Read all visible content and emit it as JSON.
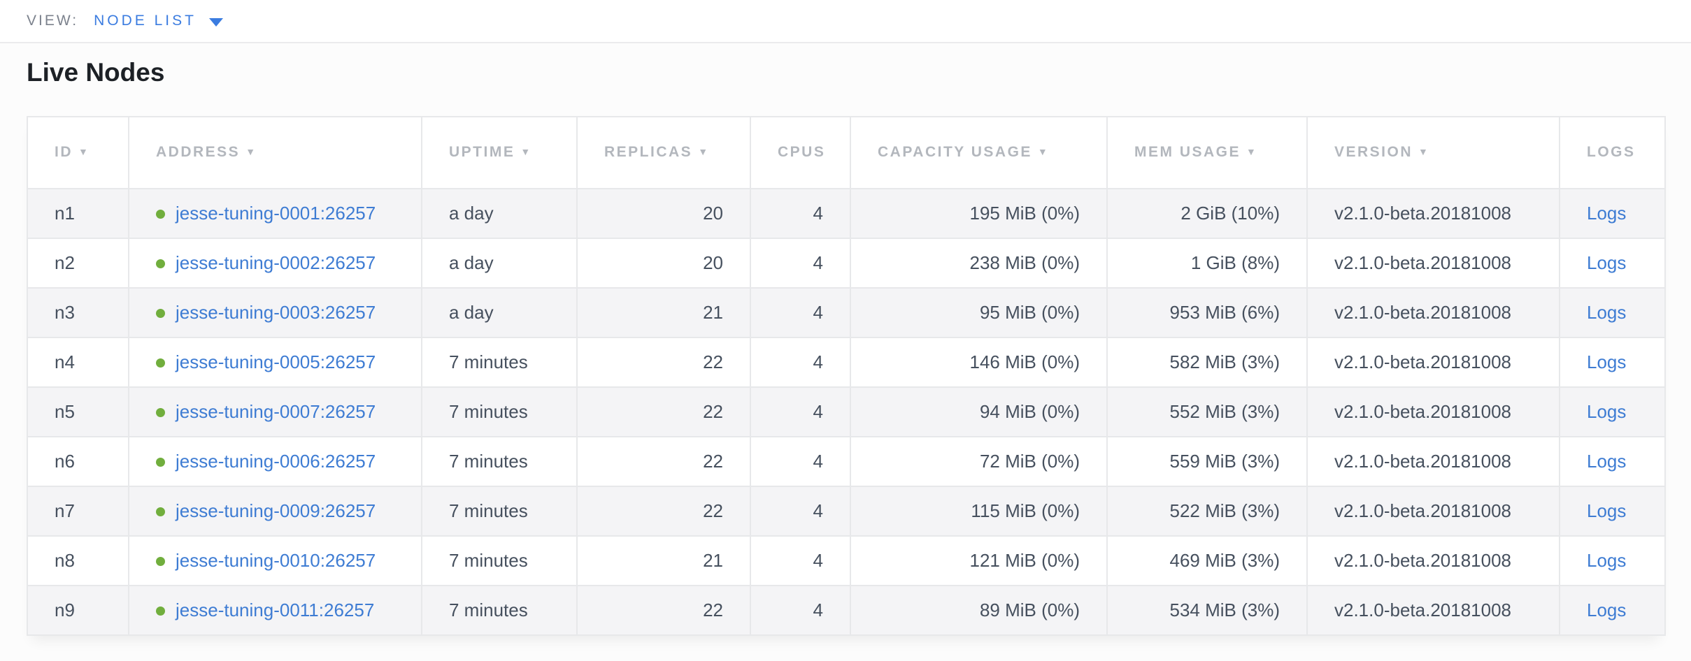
{
  "view_bar": {
    "label": "VIEW:",
    "selected_view": "NODE LIST"
  },
  "page_title": "Live Nodes",
  "colors": {
    "accent_blue": "#3b7ce0",
    "link_blue": "#3e7cd3",
    "status_green": "#71ae3d",
    "header_gray": "#b3b7bd",
    "cell_text": "#46505e",
    "row_stripe": "#f4f4f6",
    "border": "#e7e8ea"
  },
  "table": {
    "sort_arrow_glyph": "▼",
    "columns": [
      {
        "key": "id",
        "label": "ID",
        "sortable": true
      },
      {
        "key": "address",
        "label": "ADDRESS",
        "sortable": true
      },
      {
        "key": "uptime",
        "label": "UPTIME",
        "sortable": true
      },
      {
        "key": "replicas",
        "label": "REPLICAS",
        "sortable": true
      },
      {
        "key": "cpus",
        "label": "CPUS",
        "sortable": false
      },
      {
        "key": "capacity",
        "label": "CAPACITY USAGE",
        "sortable": true
      },
      {
        "key": "mem",
        "label": "MEM USAGE",
        "sortable": true
      },
      {
        "key": "version",
        "label": "VERSION",
        "sortable": true
      },
      {
        "key": "logs",
        "label": "LOGS",
        "sortable": false
      }
    ],
    "rows": [
      {
        "id": "n1",
        "status": "live",
        "address": "jesse-tuning-0001:26257",
        "uptime": "a day",
        "replicas": "20",
        "cpus": "4",
        "capacity_usage": "195 MiB (0%)",
        "mem_usage": "2 GiB (10%)",
        "version": "v2.1.0-beta.20181008",
        "logs_label": "Logs"
      },
      {
        "id": "n2",
        "status": "live",
        "address": "jesse-tuning-0002:26257",
        "uptime": "a day",
        "replicas": "20",
        "cpus": "4",
        "capacity_usage": "238 MiB (0%)",
        "mem_usage": "1 GiB (8%)",
        "version": "v2.1.0-beta.20181008",
        "logs_label": "Logs"
      },
      {
        "id": "n3",
        "status": "live",
        "address": "jesse-tuning-0003:26257",
        "uptime": "a day",
        "replicas": "21",
        "cpus": "4",
        "capacity_usage": "95 MiB (0%)",
        "mem_usage": "953 MiB (6%)",
        "version": "v2.1.0-beta.20181008",
        "logs_label": "Logs"
      },
      {
        "id": "n4",
        "status": "live",
        "address": "jesse-tuning-0005:26257",
        "uptime": "7 minutes",
        "replicas": "22",
        "cpus": "4",
        "capacity_usage": "146 MiB (0%)",
        "mem_usage": "582 MiB (3%)",
        "version": "v2.1.0-beta.20181008",
        "logs_label": "Logs"
      },
      {
        "id": "n5",
        "status": "live",
        "address": "jesse-tuning-0007:26257",
        "uptime": "7 minutes",
        "replicas": "22",
        "cpus": "4",
        "capacity_usage": "94 MiB (0%)",
        "mem_usage": "552 MiB (3%)",
        "version": "v2.1.0-beta.20181008",
        "logs_label": "Logs"
      },
      {
        "id": "n6",
        "status": "live",
        "address": "jesse-tuning-0006:26257",
        "uptime": "7 minutes",
        "replicas": "22",
        "cpus": "4",
        "capacity_usage": "72 MiB (0%)",
        "mem_usage": "559 MiB (3%)",
        "version": "v2.1.0-beta.20181008",
        "logs_label": "Logs"
      },
      {
        "id": "n7",
        "status": "live",
        "address": "jesse-tuning-0009:26257",
        "uptime": "7 minutes",
        "replicas": "22",
        "cpus": "4",
        "capacity_usage": "115 MiB (0%)",
        "mem_usage": "522 MiB (3%)",
        "version": "v2.1.0-beta.20181008",
        "logs_label": "Logs"
      },
      {
        "id": "n8",
        "status": "live",
        "address": "jesse-tuning-0010:26257",
        "uptime": "7 minutes",
        "replicas": "21",
        "cpus": "4",
        "capacity_usage": "121 MiB (0%)",
        "mem_usage": "469 MiB (3%)",
        "version": "v2.1.0-beta.20181008",
        "logs_label": "Logs"
      },
      {
        "id": "n9",
        "status": "live",
        "address": "jesse-tuning-0011:26257",
        "uptime": "7 minutes",
        "replicas": "22",
        "cpus": "4",
        "capacity_usage": "89 MiB (0%)",
        "mem_usage": "534 MiB (3%)",
        "version": "v2.1.0-beta.20181008",
        "logs_label": "Logs"
      }
    ]
  }
}
